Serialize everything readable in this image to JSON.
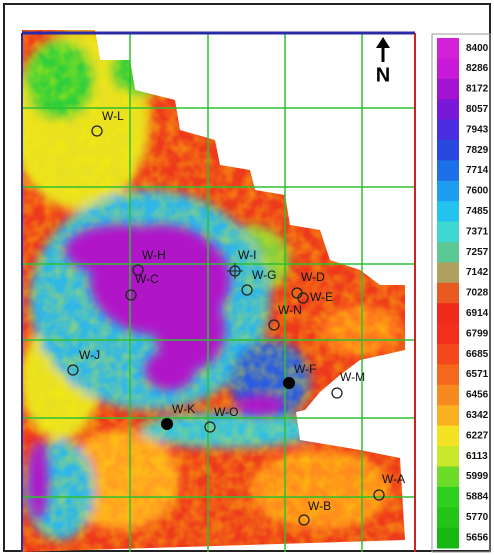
{
  "north_label": "N",
  "wells": [
    "W-L",
    "W-H",
    "W-C",
    "W-I",
    "W-G",
    "W-D",
    "W-E",
    "W-N",
    "W-J",
    "W-F",
    "W-M",
    "W-K",
    "W-O",
    "W-A",
    "W-B"
  ],
  "colorbar": {
    "labels": [
      8400,
      8286,
      8172,
      8057,
      7943,
      7829,
      7714,
      7600,
      7485,
      7371,
      7257,
      7142,
      7028,
      6914,
      6799,
      6685,
      6571,
      6456,
      6342,
      6227,
      6113,
      5999,
      5884,
      5770,
      5656
    ]
  }
}
